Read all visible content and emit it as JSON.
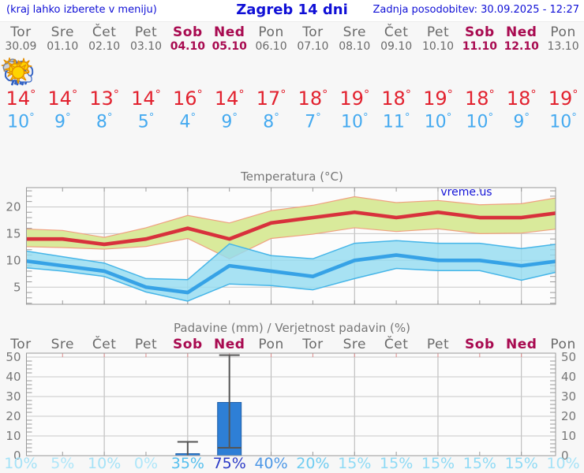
{
  "header": {
    "hint": "(kraj lahko izberete v meniju)",
    "title": "Zagreb 14 dni",
    "updated": "Zadnja posodobitev: 30.09.2025 - 12:27"
  },
  "degree_symbol": "°",
  "colors": {
    "link_blue": "#0f0fd6",
    "weekday_gray": "#6a6a6a",
    "weekend_red": "#a80a50",
    "max_temp_red": "#e2222f",
    "min_temp_blue": "#45aaf0",
    "axis_text": "#777777",
    "frame": "#999999",
    "grid_h": "#c8c8c8",
    "grid_v": "#b5b5b5",
    "plot_bg": "#fcfcfc"
  },
  "days": [
    {
      "name": "Tor",
      "date": "30.09",
      "weekend": false,
      "icon": "cloudy",
      "max": 14,
      "min": 10
    },
    {
      "name": "Sre",
      "date": "01.10",
      "weekend": false,
      "icon": "partly-cloudy",
      "max": 14,
      "min": 9
    },
    {
      "name": "Čet",
      "date": "02.10",
      "weekend": false,
      "icon": "partly-cloudy",
      "max": 13,
      "min": 8
    },
    {
      "name": "Pet",
      "date": "03.10",
      "weekend": false,
      "icon": "sunny",
      "max": 14,
      "min": 5
    },
    {
      "name": "Sob",
      "date": "04.10",
      "weekend": true,
      "icon": "rain",
      "max": 16,
      "min": 4
    },
    {
      "name": "Ned",
      "date": "05.10",
      "weekend": true,
      "icon": "sun-rain",
      "max": 14,
      "min": 9
    },
    {
      "name": "Pon",
      "date": "06.10",
      "weekend": false,
      "icon": "partly-cloudy",
      "max": 17,
      "min": 8
    },
    {
      "name": "Tor",
      "date": "07.10",
      "weekend": false,
      "icon": "mostly-sunny",
      "max": 18,
      "min": 7
    },
    {
      "name": "Sre",
      "date": "08.10",
      "weekend": false,
      "icon": "sunny",
      "max": 19,
      "min": 10
    },
    {
      "name": "Čet",
      "date": "09.10",
      "weekend": false,
      "icon": "sunny",
      "max": 18,
      "min": 11
    },
    {
      "name": "Pet",
      "date": "10.10",
      "weekend": false,
      "icon": "sunny",
      "max": 19,
      "min": 10
    },
    {
      "name": "Sob",
      "date": "11.10",
      "weekend": true,
      "icon": "sunny",
      "max": 18,
      "min": 10
    },
    {
      "name": "Ned",
      "date": "12.10",
      "weekend": true,
      "icon": "sunny",
      "max": 18,
      "min": 9
    },
    {
      "name": "Pon",
      "date": "13.10",
      "weekend": false,
      "icon": "sunny",
      "max": 19,
      "min": 10
    }
  ],
  "chart_data": [
    {
      "type": "line",
      "title": "Temperatura (°C)",
      "watermark": "vreme.us",
      "ylim": [
        1.8,
        23.6
      ],
      "yticks": [
        5,
        10,
        15,
        20
      ],
      "grid_day_indices": [
        2,
        4,
        6,
        8,
        10,
        12
      ],
      "series": [
        {
          "name": "max_temp",
          "color": "#d8313c",
          "values": [
            14,
            14,
            13,
            14,
            16,
            14,
            17,
            18,
            19,
            18,
            19,
            18,
            18,
            19
          ]
        },
        {
          "name": "max_range_upper",
          "color": "#f0a080",
          "values": [
            15.9,
            15.6,
            14.3,
            16.1,
            18.4,
            17.0,
            19.3,
            20.3,
            21.9,
            20.8,
            21.2,
            20.4,
            20.6,
            21.9
          ]
        },
        {
          "name": "max_range_lower",
          "color": "#f0a080",
          "values": [
            12.6,
            12.4,
            12.1,
            12.6,
            14.1,
            10.3,
            14.1,
            14.9,
            16.1,
            15.4,
            15.9,
            15.0,
            15.1,
            16.0
          ]
        },
        {
          "name": "min_temp",
          "color": "#36a2e6",
          "values": [
            10,
            9,
            8,
            5,
            4,
            9,
            8,
            7,
            10,
            11,
            10,
            10,
            9,
            10
          ]
        },
        {
          "name": "min_range_upper",
          "color": "#45b5e8",
          "values": [
            11.9,
            10.7,
            9.5,
            6.6,
            6.4,
            13.1,
            10.9,
            10.3,
            13.2,
            13.7,
            13.2,
            13.2,
            12.2,
            13.2
          ]
        },
        {
          "name": "min_range_lower",
          "color": "#45b5e8",
          "values": [
            8.7,
            8.0,
            7.0,
            4.1,
            2.4,
            5.6,
            5.3,
            4.5,
            6.6,
            8.5,
            8.1,
            8.1,
            6.3,
            8.1
          ]
        }
      ],
      "band_colors": {
        "max_band": "#d9ea9b",
        "min_band": "#95dcf0"
      }
    },
    {
      "type": "bar",
      "title": "Padavine (mm) / Verjetnost padavin (%)",
      "categories": [
        "Tor",
        "Sre",
        "Čet",
        "Pet",
        "Sob",
        "Ned",
        "Pon",
        "Tor",
        "Sre",
        "Čet",
        "Pet",
        "Sob",
        "Ned",
        "Pon"
      ],
      "values": [
        0,
        0,
        0,
        0,
        1,
        27,
        0,
        0,
        0,
        0,
        0,
        0,
        0,
        0
      ],
      "whiskers": [
        null,
        null,
        null,
        null,
        {
          "low": 0,
          "high": 7
        },
        {
          "low": 4,
          "high": 51
        },
        null,
        null,
        null,
        null,
        null,
        null,
        null,
        null
      ],
      "probabilities": [
        "10%",
        "5%",
        "10%",
        "0%",
        "35%",
        "75%",
        "40%",
        "20%",
        "15%",
        "15%",
        "15%",
        "15%",
        "15%",
        "10%"
      ],
      "prob_colors": [
        "#a5e2f7",
        "#aee6f9",
        "#a5e2f7",
        "#aee6f9",
        "#55bfee",
        "#2b3ac6",
        "#4c97e6",
        "#6fccf1",
        "#8edaf5",
        "#8edaf5",
        "#8edaf5",
        "#8edaf5",
        "#8edaf5",
        "#a5e2f7"
      ],
      "ylim": [
        0,
        52
      ],
      "yticks": [
        0,
        10,
        20,
        30,
        40,
        50
      ],
      "bar_color": "#2e7fd6",
      "whisker_color": "#555555"
    }
  ]
}
